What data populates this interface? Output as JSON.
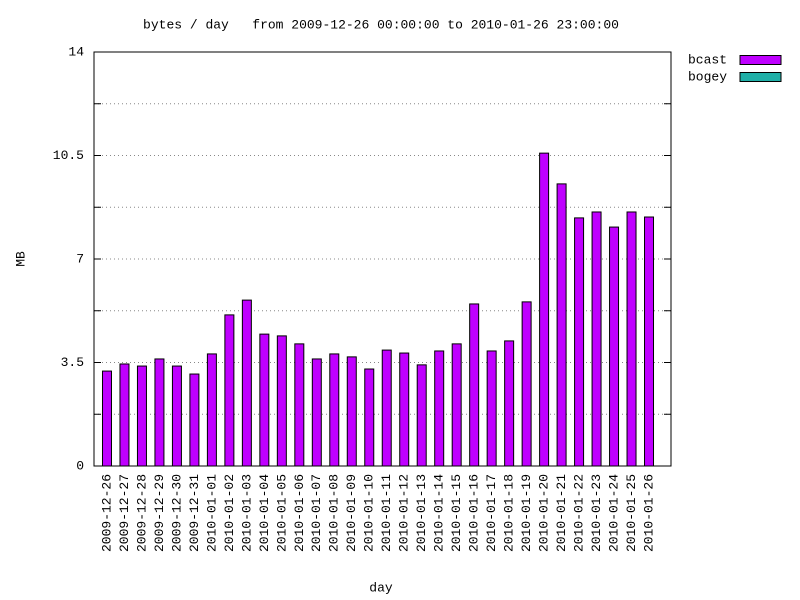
{
  "chart_data": {
    "type": "bar",
    "title": "bytes / day   from 2009-12-26 00:00:00 to 2010-01-26 23:00:00",
    "x_label": "day",
    "y_label": "MB",
    "categories": [
      "2009-12-26",
      "2009-12-27",
      "2009-12-28",
      "2009-12-29",
      "2009-12-30",
      "2009-12-31",
      "2010-01-01",
      "2010-01-02",
      "2010-01-03",
      "2010-01-04",
      "2010-01-05",
      "2010-01-06",
      "2010-01-07",
      "2010-01-08",
      "2010-01-09",
      "2010-01-10",
      "2010-01-11",
      "2010-01-12",
      "2010-01-13",
      "2010-01-14",
      "2010-01-15",
      "2010-01-16",
      "2010-01-17",
      "2010-01-18",
      "2010-01-19",
      "2010-01-20",
      "2010-01-21",
      "2010-01-22",
      "2010-01-23",
      "2010-01-24",
      "2010-01-25",
      "2010-01-26"
    ],
    "series": [
      {
        "name": "bcast",
        "color": "#bf00ff",
        "values": [
          3.21,
          3.45,
          3.38,
          3.62,
          3.38,
          3.11,
          3.79,
          5.11,
          5.61,
          4.46,
          4.4,
          4.13,
          3.62,
          3.79,
          3.69,
          3.28,
          3.92,
          3.82,
          3.42,
          3.89,
          4.13,
          5.48,
          3.89,
          4.23,
          5.55,
          10.58,
          9.54,
          8.39,
          8.59,
          8.08,
          8.59,
          8.42
        ]
      },
      {
        "name": "bogey",
        "color": "#20b0a8",
        "values": [
          0,
          0,
          0,
          0,
          0,
          0,
          0,
          0,
          0,
          0,
          0,
          0,
          0,
          0,
          0,
          0,
          0,
          0,
          0,
          0,
          0,
          0,
          0,
          0,
          0,
          0,
          0,
          0,
          0,
          0,
          0,
          0
        ]
      }
    ],
    "ylim": [
      0,
      14
    ],
    "yticks": [
      0,
      3.5,
      7,
      10.5,
      14
    ],
    "minor_yticks": [
      1.75,
      5.25,
      8.75,
      12.25
    ],
    "grid": true,
    "legend": "outside-right"
  }
}
